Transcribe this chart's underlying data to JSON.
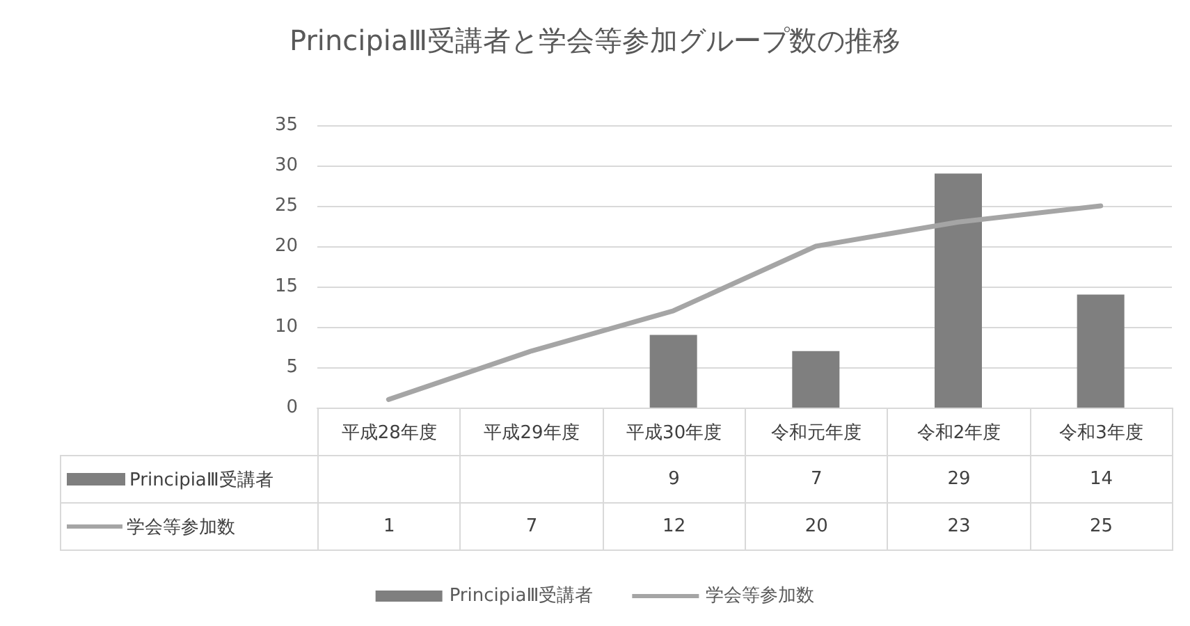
{
  "chart_data": {
    "type": "bar",
    "title": "PrincipiaⅢ受講者と学会等参加グループ数の推移",
    "categories": [
      "平成28年度",
      "平成29年度",
      "平成30年度",
      "令和元年度",
      "令和2年度",
      "令和3年度"
    ],
    "series": [
      {
        "name": "PrincipiaⅢ受講者",
        "color": "#7f7f7f",
        "values": [
          null,
          null,
          9,
          7,
          29,
          14
        ]
      },
      {
        "name": "学会等参加数",
        "type": "line",
        "color": "#a5a5a5",
        "values": [
          1,
          7,
          12,
          20,
          23,
          25
        ]
      }
    ],
    "ylim": [
      0,
      35
    ],
    "yticks": [
      0,
      5,
      10,
      15,
      20,
      25,
      30,
      35
    ],
    "grid": "y",
    "legend": "bottom",
    "marker": "none",
    "line_style": "solid",
    "data_labels": true
  }
}
